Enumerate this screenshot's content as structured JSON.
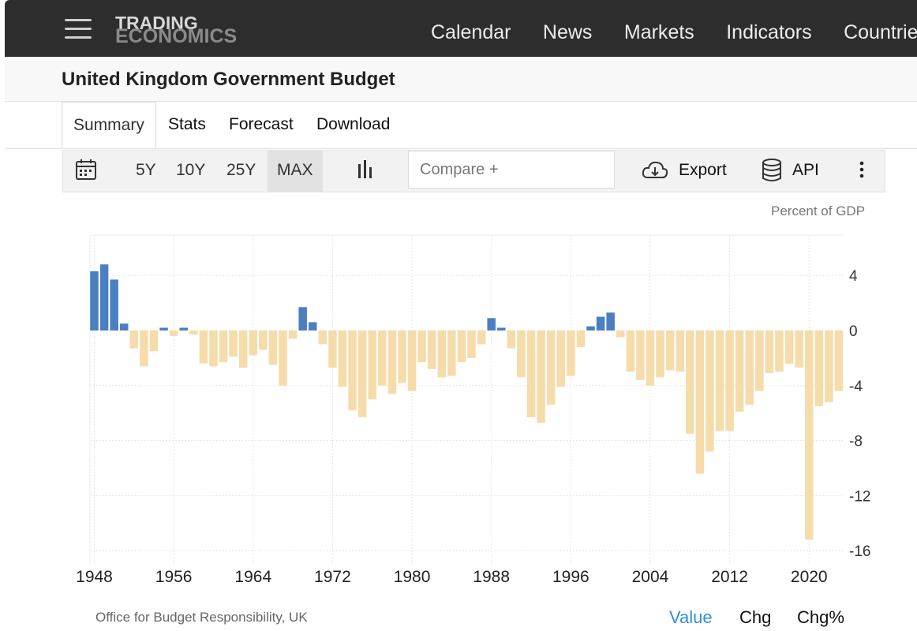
{
  "header": {
    "logo_line1": "TRADING",
    "logo_line2": "ECONOMICS",
    "nav": [
      "Calendar",
      "News",
      "Markets",
      "Indicators",
      "Countries"
    ]
  },
  "page": {
    "title": "United Kingdom Government Budget"
  },
  "tabs": {
    "summary": "Summary",
    "stats": "Stats",
    "forecast": "Forecast",
    "download": "Download"
  },
  "toolbar": {
    "ranges": [
      "5Y",
      "10Y",
      "25Y",
      "MAX"
    ],
    "selected_range": "MAX",
    "compare_placeholder": "Compare +",
    "export": "Export",
    "api": "API"
  },
  "chart_data": {
    "type": "bar",
    "unit_label": "Percent of GDP",
    "positive_color": "#4a7fc1",
    "negative_color": "#f5dcaa",
    "x": [
      1948,
      1949,
      1950,
      1951,
      1952,
      1953,
      1954,
      1955,
      1956,
      1957,
      1958,
      1959,
      1960,
      1961,
      1962,
      1963,
      1964,
      1965,
      1966,
      1967,
      1968,
      1969,
      1970,
      1971,
      1972,
      1973,
      1974,
      1975,
      1976,
      1977,
      1978,
      1979,
      1980,
      1981,
      1982,
      1983,
      1984,
      1985,
      1986,
      1987,
      1988,
      1989,
      1990,
      1991,
      1992,
      1993,
      1994,
      1995,
      1996,
      1997,
      1998,
      1999,
      2000,
      2001,
      2002,
      2003,
      2004,
      2005,
      2006,
      2007,
      2008,
      2009,
      2010,
      2011,
      2012,
      2013,
      2014,
      2015,
      2016,
      2017,
      2018,
      2019,
      2020,
      2021,
      2022,
      2023
    ],
    "values": [
      4.3,
      4.8,
      3.7,
      0.5,
      -1.3,
      -2.6,
      -1.5,
      0.2,
      -0.4,
      0.2,
      -0.3,
      -2.4,
      -2.6,
      -2.3,
      -1.9,
      -2.7,
      -1.8,
      -1.4,
      -2.5,
      -4.0,
      -0.6,
      1.7,
      0.6,
      -1.0,
      -2.7,
      -4.1,
      -5.8,
      -6.3,
      -5.0,
      -4.0,
      -4.6,
      -3.8,
      -4.4,
      -2.3,
      -2.8,
      -3.4,
      -3.3,
      -2.3,
      -2.0,
      -1.0,
      0.9,
      0.2,
      -1.3,
      -3.4,
      -6.3,
      -6.7,
      -5.4,
      -4.1,
      -3.3,
      -1.2,
      0.3,
      1.0,
      1.3,
      -0.5,
      -3.0,
      -3.6,
      -4.0,
      -3.4,
      -2.9,
      -3.0,
      -7.5,
      -10.4,
      -8.8,
      -7.3,
      -7.3,
      -5.9,
      -5.4,
      -4.4,
      -3.1,
      -3.0,
      -2.4,
      -2.7,
      -15.2,
      -5.5,
      -5.2,
      -4.4
    ],
    "yticks": [
      4,
      0,
      -4,
      -8,
      -12,
      -16
    ],
    "ylim": [
      -17.5,
      7
    ],
    "xtick_labels": [
      "1948",
      "1956",
      "1964",
      "1972",
      "1980",
      "1988",
      "1996",
      "2004",
      "2012",
      "2020"
    ],
    "grid": true
  },
  "footer": {
    "source": "Office for Budget Responsibility, UK",
    "buttons": [
      "Value",
      "Chg",
      "Chg%"
    ],
    "selected": "Value"
  }
}
